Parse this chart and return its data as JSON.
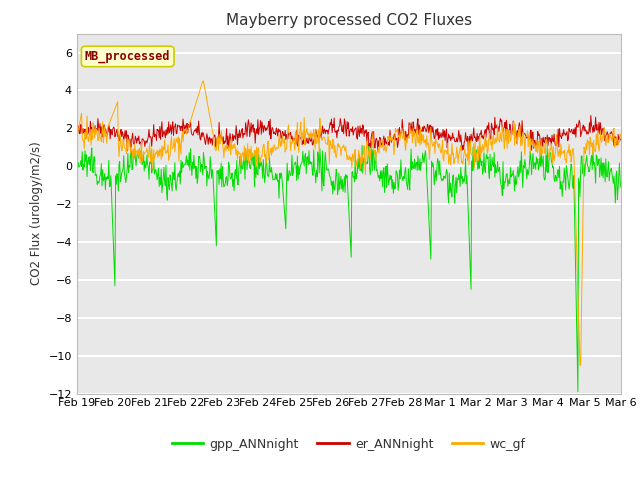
{
  "title": "Mayberry processed CO2 Fluxes",
  "ylabel": "CO2 Flux (urology/m2/s)",
  "ylim": [
    -12,
    7
  ],
  "yticks": [
    -12,
    -10,
    -8,
    -6,
    -4,
    -2,
    0,
    2,
    4,
    6
  ],
  "fig_bg_color": "#ffffff",
  "plot_bg_color": "#e8e8e8",
  "inner_bg_color": "#d8d8d8",
  "line_green": "#00dd00",
  "line_red": "#cc0000",
  "line_orange": "#ffaa00",
  "legend_label_green": "gpp_ANNnight",
  "legend_label_red": "er_ANNnight",
  "legend_label_orange": "wc_gf",
  "inset_label": "MB_processed",
  "inset_text_color": "#8b0000",
  "inset_bg_color": "#ffffcc",
  "inset_border_color": "#cccc00",
  "n_points": 800,
  "seed": 42,
  "x_start": 0,
  "x_end": 15,
  "x_tick_labels": [
    "Feb 19",
    "Feb 20",
    "Feb 21",
    "Feb 22",
    "Feb 23",
    "Feb 24",
    "Feb 25",
    "Feb 26",
    "Feb 27",
    "Feb 28",
    "Mar 1",
    "Mar 2",
    "Mar 3",
    "Mar 4",
    "Mar 5",
    "Mar 6"
  ],
  "x_tick_positions": [
    0,
    1,
    2,
    3,
    4,
    5,
    6,
    7,
    8,
    9,
    10,
    11,
    12,
    13,
    14,
    15
  ]
}
